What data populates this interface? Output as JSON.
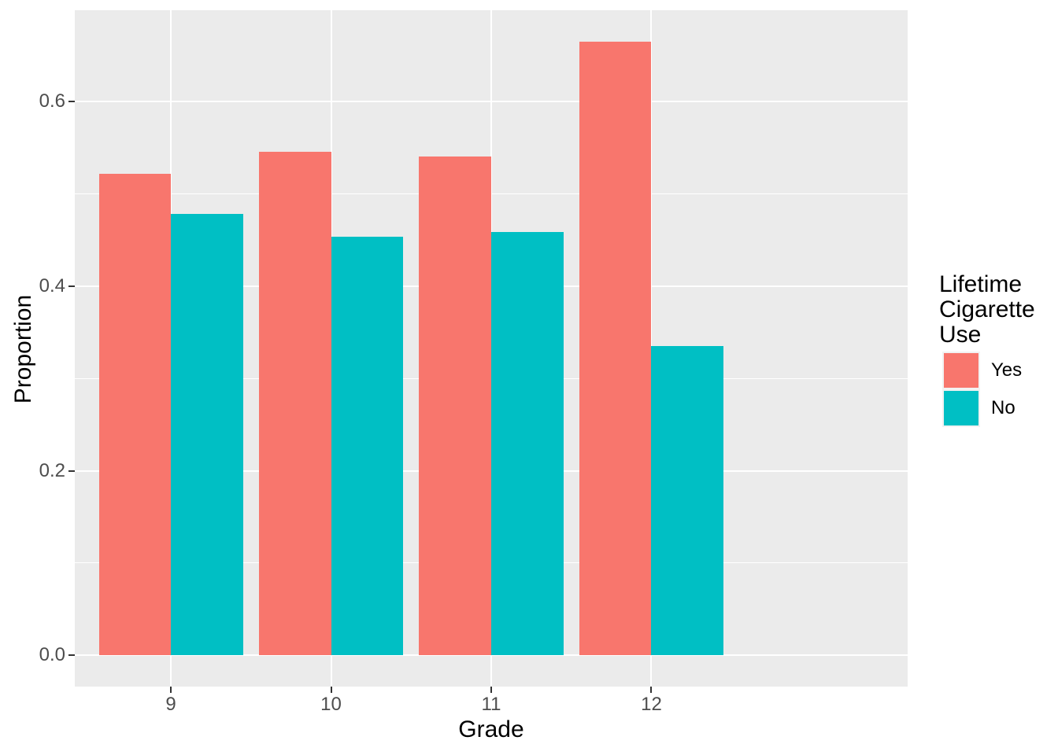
{
  "chart_data": {
    "type": "bar",
    "title": "",
    "xlabel": "Grade",
    "ylabel": "Proportion",
    "categories": [
      "9",
      "10",
      "11",
      "12"
    ],
    "series": [
      {
        "name": "Yes",
        "color": "#F8766D",
        "values": [
          0.522,
          0.546,
          0.541,
          0.665
        ]
      },
      {
        "name": "No",
        "color": "#00BFC4",
        "values": [
          0.478,
          0.454,
          0.459,
          0.335
        ]
      }
    ],
    "y_ticks": [
      0.0,
      0.2,
      0.4,
      0.6
    ],
    "y_tick_labels": [
      "0.0",
      "0.2",
      "0.4",
      "0.6"
    ],
    "y_minor_ticks": [
      0.1,
      0.3,
      0.5
    ],
    "ylim": [
      -0.0333,
      0.6989
    ],
    "bar_width_fraction": 0.45,
    "grid": true,
    "legend": {
      "position": "right",
      "title": "Lifetime Cigarette Use",
      "entries": [
        "Yes",
        "No"
      ]
    },
    "colors": {
      "panel_background": "#EBEBEB",
      "gridline": "#FFFFFF",
      "tick_mark": "#333333",
      "tick_label": "#4D4D4D",
      "axis_title": "#000000",
      "legend_key_background": "#F2F2F2",
      "figure_background": "#FFFFFF"
    }
  }
}
